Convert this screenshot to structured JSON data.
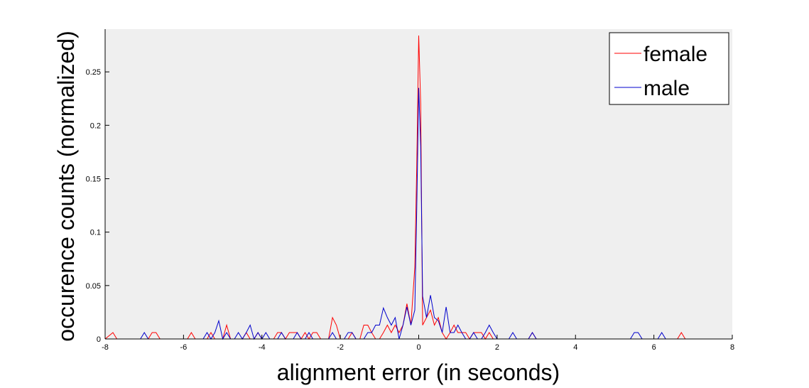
{
  "chart_data": {
    "type": "line",
    "title": "",
    "xlabel": "alignment error (in seconds)",
    "ylabel": "occurence counts (normalized)",
    "xlim": [
      -8,
      8
    ],
    "ylim": [
      0,
      0.29
    ],
    "xticks": [
      -8,
      -6,
      -4,
      -2,
      0,
      2,
      4,
      6,
      8
    ],
    "xtick_labels": [
      "-8",
      "-6",
      "-4",
      "-2",
      "0",
      "2",
      "4",
      "6",
      "8"
    ],
    "yticks": [
      0,
      0.05,
      0.1,
      0.15,
      0.2,
      0.25
    ],
    "ytick_labels": [
      "0",
      "0.05",
      "0.1",
      "0.15",
      "0.2",
      "0.25"
    ],
    "grid": false,
    "plot_background": "#efefef",
    "legend_position": "top-right",
    "series": [
      {
        "name": "female",
        "color": "#ff0000",
        "points": [
          [
            -8,
            0
          ],
          [
            -7.8,
            0.006
          ],
          [
            -7.7,
            0
          ],
          [
            -6.9,
            0
          ],
          [
            -6.8,
            0.006
          ],
          [
            -6.7,
            0.006
          ],
          [
            -6.6,
            0
          ],
          [
            -5.9,
            0
          ],
          [
            -5.8,
            0.006
          ],
          [
            -5.7,
            0
          ],
          [
            -5.4,
            0
          ],
          [
            -5.3,
            0.006
          ],
          [
            -5.2,
            0
          ],
          [
            -5.0,
            0
          ],
          [
            -4.9,
            0.013
          ],
          [
            -4.8,
            0
          ],
          [
            -4.5,
            0
          ],
          [
            -4.4,
            0.006
          ],
          [
            -4.3,
            0
          ],
          [
            -4.2,
            0
          ],
          [
            -4.1,
            0.006
          ],
          [
            -4.0,
            0
          ],
          [
            -3.7,
            0
          ],
          [
            -3.6,
            0.006
          ],
          [
            -3.5,
            0.006
          ],
          [
            -3.4,
            0
          ],
          [
            -3.3,
            0.006
          ],
          [
            -3.2,
            0.006
          ],
          [
            -3.1,
            0.006
          ],
          [
            -3.0,
            0
          ],
          [
            -2.9,
            0.006
          ],
          [
            -2.8,
            0
          ],
          [
            -2.7,
            0.006
          ],
          [
            -2.6,
            0.006
          ],
          [
            -2.5,
            0
          ],
          [
            -2.3,
            0
          ],
          [
            -2.2,
            0.02
          ],
          [
            -2.1,
            0.013
          ],
          [
            -2.0,
            0
          ],
          [
            -1.8,
            0
          ],
          [
            -1.7,
            0.006
          ],
          [
            -1.6,
            0
          ],
          [
            -1.5,
            0
          ],
          [
            -1.4,
            0.013
          ],
          [
            -1.3,
            0.013
          ],
          [
            -1.2,
            0.006
          ],
          [
            -1.1,
            0
          ],
          [
            -1.0,
            0
          ],
          [
            -0.9,
            0.006
          ],
          [
            -0.8,
            0.013
          ],
          [
            -0.7,
            0.006
          ],
          [
            -0.6,
            0.013
          ],
          [
            -0.5,
            0.006
          ],
          [
            -0.4,
            0.013
          ],
          [
            -0.3,
            0.033
          ],
          [
            -0.2,
            0.013
          ],
          [
            -0.1,
            0.067
          ],
          [
            -0.05,
            0.16
          ],
          [
            0,
            0.284
          ],
          [
            0.05,
            0.22
          ],
          [
            0.1,
            0.013
          ],
          [
            0.2,
            0.02
          ],
          [
            0.3,
            0.027
          ],
          [
            0.4,
            0.013
          ],
          [
            0.5,
            0.02
          ],
          [
            0.6,
            0.006
          ],
          [
            0.7,
            0
          ],
          [
            0.8,
            0.006
          ],
          [
            0.9,
            0.013
          ],
          [
            1.0,
            0.006
          ],
          [
            1.1,
            0.006
          ],
          [
            1.2,
            0.006
          ],
          [
            1.3,
            0
          ],
          [
            1.4,
            0.006
          ],
          [
            1.5,
            0.006
          ],
          [
            1.6,
            0.006
          ],
          [
            1.7,
            0
          ],
          [
            1.8,
            0.006
          ],
          [
            1.9,
            0
          ],
          [
            2.8,
            0
          ],
          [
            2.9,
            0.006
          ],
          [
            3.0,
            0
          ],
          [
            6.6,
            0
          ],
          [
            6.7,
            0.006
          ],
          [
            6.8,
            0
          ],
          [
            8,
            0
          ]
        ]
      },
      {
        "name": "male",
        "color": "#0000cc",
        "points": [
          [
            -8,
            0
          ],
          [
            -7.1,
            0
          ],
          [
            -7.0,
            0.006
          ],
          [
            -6.9,
            0
          ],
          [
            -5.5,
            0
          ],
          [
            -5.4,
            0.006
          ],
          [
            -5.3,
            0
          ],
          [
            -5.2,
            0.006
          ],
          [
            -5.1,
            0.017
          ],
          [
            -5.0,
            0
          ],
          [
            -4.9,
            0.006
          ],
          [
            -4.8,
            0
          ],
          [
            -4.7,
            0
          ],
          [
            -4.6,
            0.006
          ],
          [
            -4.5,
            0
          ],
          [
            -4.4,
            0.006
          ],
          [
            -4.3,
            0.013
          ],
          [
            -4.2,
            0
          ],
          [
            -4.1,
            0.006
          ],
          [
            -4.0,
            0
          ],
          [
            -3.9,
            0.006
          ],
          [
            -3.8,
            0
          ],
          [
            -3.6,
            0
          ],
          [
            -3.5,
            0.006
          ],
          [
            -3.4,
            0
          ],
          [
            -3.2,
            0
          ],
          [
            -3.1,
            0.006
          ],
          [
            -3.0,
            0
          ],
          [
            -2.9,
            0
          ],
          [
            -2.8,
            0.006
          ],
          [
            -2.7,
            0
          ],
          [
            -2.3,
            0
          ],
          [
            -2.2,
            0.006
          ],
          [
            -2.1,
            0
          ],
          [
            -1.9,
            0
          ],
          [
            -1.8,
            0.006
          ],
          [
            -1.7,
            0.006
          ],
          [
            -1.6,
            0
          ],
          [
            -1.4,
            0
          ],
          [
            -1.3,
            0.006
          ],
          [
            -1.2,
            0.006
          ],
          [
            -1.1,
            0.013
          ],
          [
            -1.0,
            0.013
          ],
          [
            -0.9,
            0.029
          ],
          [
            -0.8,
            0.02
          ],
          [
            -0.7,
            0.013
          ],
          [
            -0.6,
            0.02
          ],
          [
            -0.5,
            0
          ],
          [
            -0.4,
            0.013
          ],
          [
            -0.3,
            0.03
          ],
          [
            -0.2,
            0.013
          ],
          [
            -0.1,
            0.027
          ],
          [
            -0.05,
            0.12
          ],
          [
            0,
            0.235
          ],
          [
            0.05,
            0.18
          ],
          [
            0.1,
            0.04
          ],
          [
            0.2,
            0.02
          ],
          [
            0.3,
            0.041
          ],
          [
            0.4,
            0.02
          ],
          [
            0.5,
            0.017
          ],
          [
            0.6,
            0.006
          ],
          [
            0.7,
            0.03
          ],
          [
            0.8,
            0.006
          ],
          [
            0.9,
            0.006
          ],
          [
            1.0,
            0.013
          ],
          [
            1.1,
            0.006
          ],
          [
            1.2,
            0
          ],
          [
            1.3,
            0
          ],
          [
            1.4,
            0.006
          ],
          [
            1.5,
            0
          ],
          [
            1.6,
            0
          ],
          [
            1.7,
            0.006
          ],
          [
            1.8,
            0.013
          ],
          [
            1.9,
            0.006
          ],
          [
            2.0,
            0
          ],
          [
            2.3,
            0
          ],
          [
            2.4,
            0.006
          ],
          [
            2.5,
            0
          ],
          [
            2.8,
            0
          ],
          [
            2.9,
            0.006
          ],
          [
            3.0,
            0
          ],
          [
            5.4,
            0
          ],
          [
            5.5,
            0.006
          ],
          [
            5.6,
            0.006
          ],
          [
            5.7,
            0
          ],
          [
            6.1,
            0
          ],
          [
            6.2,
            0.006
          ],
          [
            6.3,
            0
          ],
          [
            8,
            0
          ]
        ]
      }
    ]
  }
}
